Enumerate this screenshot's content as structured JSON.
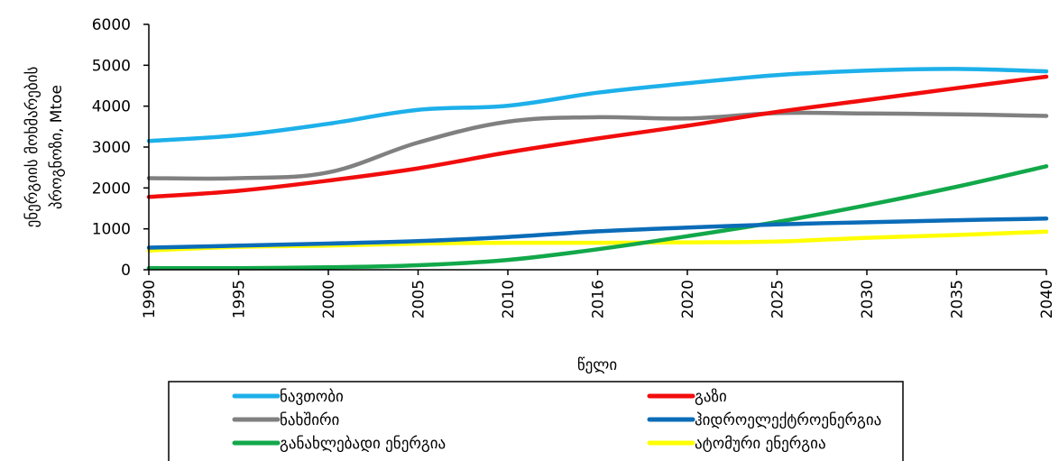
{
  "chart_data": {
    "type": "line",
    "x": [
      "1990",
      "1995",
      "2000",
      "2005",
      "2010",
      "2016",
      "2020",
      "2025",
      "2030",
      "2035",
      "2040"
    ],
    "xlabel": "წელი",
    "ylabel_lines": [
      "ენერგიის მოხმარების",
      "პროგნოზი,  Mtoe"
    ],
    "ylim": [
      0,
      6000
    ],
    "yticks": [
      "0",
      "1000",
      "2000",
      "3000",
      "4000",
      "5000",
      "6000"
    ],
    "grid": false,
    "legend_position": "bottom",
    "series": [
      {
        "name": "ნავთობი",
        "color": "#1DB0EA",
        "values": [
          3150,
          3290,
          3570,
          3910,
          4010,
          4330,
          4560,
          4760,
          4870,
          4910,
          4850
        ]
      },
      {
        "name": "გაზი",
        "color": "#F10D0C",
        "values": [
          1780,
          1930,
          2180,
          2480,
          2870,
          3210,
          3520,
          3860,
          4150,
          4440,
          4720
        ]
      },
      {
        "name": "ნახშირი",
        "color": "#808080",
        "values": [
          2240,
          2240,
          2380,
          3110,
          3620,
          3730,
          3700,
          3830,
          3820,
          3800,
          3760
        ]
      },
      {
        "name": "ჰიდროელექტროენერგია",
        "color": "#0B6CB8",
        "values": [
          540,
          590,
          640,
          700,
          800,
          940,
          1030,
          1110,
          1160,
          1210,
          1250
        ]
      },
      {
        "name": "განახლებადი ენერგია",
        "color": "#12A84A",
        "values": [
          40,
          40,
          60,
          110,
          240,
          500,
          820,
          1170,
          1580,
          2030,
          2530
        ]
      },
      {
        "name": "ატომური ენერგია",
        "color": "#FFFF00",
        "values": [
          470,
          560,
          590,
          640,
          660,
          660,
          670,
          690,
          780,
          850,
          930
        ]
      }
    ]
  }
}
